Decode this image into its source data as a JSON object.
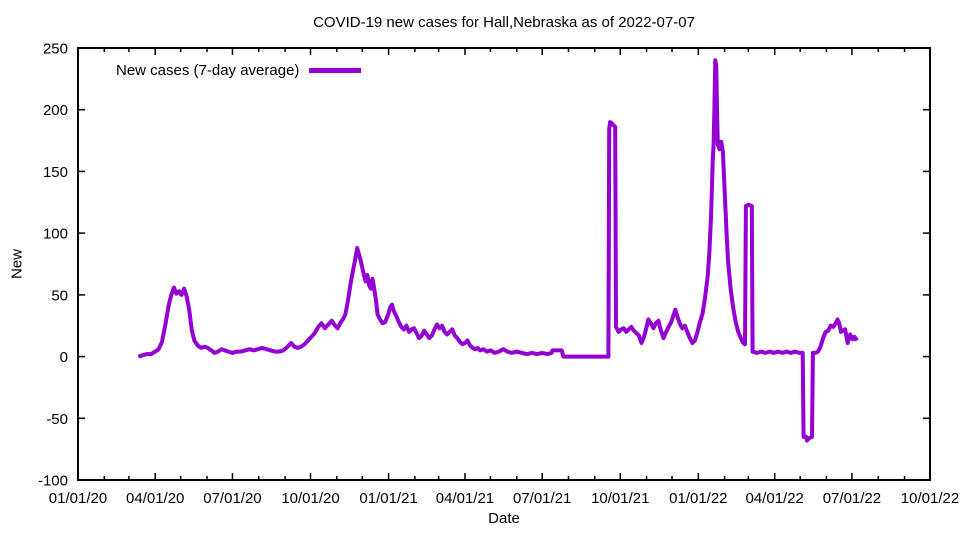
{
  "title": "COVID-19 new cases for Hall,Nebraska as of 2022-07-07",
  "chart_data": {
    "type": "line",
    "title": "COVID-19 new cases for Hall,Nebraska as of 2022-07-07",
    "xlabel": "Date",
    "ylabel": "New",
    "grid": false,
    "legend_position": "inside-top-left",
    "x_range": [
      "2020-01-01",
      "2022-10-01"
    ],
    "ylim": [
      -100,
      250
    ],
    "y_ticks": [
      {
        "value": -100,
        "label": "-100"
      },
      {
        "value": -50,
        "label": "-50"
      },
      {
        "value": 0,
        "label": "0"
      },
      {
        "value": 50,
        "label": "50"
      },
      {
        "value": 100,
        "label": "100"
      },
      {
        "value": 150,
        "label": "150"
      },
      {
        "value": 200,
        "label": "200"
      },
      {
        "value": 250,
        "label": "250"
      }
    ],
    "x_ticks": [
      {
        "date": "2020-01-01",
        "label": "01/01/20"
      },
      {
        "date": "2020-04-01",
        "label": "04/01/20"
      },
      {
        "date": "2020-07-01",
        "label": "07/01/20"
      },
      {
        "date": "2020-10-01",
        "label": "10/01/20"
      },
      {
        "date": "2021-01-01",
        "label": "01/01/21"
      },
      {
        "date": "2021-04-01",
        "label": "04/01/21"
      },
      {
        "date": "2021-07-01",
        "label": "07/01/21"
      },
      {
        "date": "2021-10-01",
        "label": "10/01/21"
      },
      {
        "date": "2022-01-01",
        "label": "01/01/22"
      },
      {
        "date": "2022-04-01",
        "label": "04/01/22"
      },
      {
        "date": "2022-07-01",
        "label": "07/01/22"
      },
      {
        "date": "2022-10-01",
        "label": "10/01/22"
      }
    ],
    "x_minor_ticks": "monthly",
    "series": [
      {
        "name": "New cases (7-day average)",
        "color": "#9400d3",
        "points": [
          [
            "2020-03-12",
            0
          ],
          [
            "2020-03-17",
            1
          ],
          [
            "2020-03-22",
            2
          ],
          [
            "2020-03-27",
            2
          ],
          [
            "2020-04-01",
            4
          ],
          [
            "2020-04-05",
            6
          ],
          [
            "2020-04-09",
            12
          ],
          [
            "2020-04-13",
            26
          ],
          [
            "2020-04-17",
            42
          ],
          [
            "2020-04-20",
            50
          ],
          [
            "2020-04-23",
            56
          ],
          [
            "2020-04-26",
            51
          ],
          [
            "2020-04-29",
            53
          ],
          [
            "2020-05-02",
            50
          ],
          [
            "2020-05-05",
            55
          ],
          [
            "2020-05-08",
            49
          ],
          [
            "2020-05-11",
            38
          ],
          [
            "2020-05-14",
            22
          ],
          [
            "2020-05-17",
            13
          ],
          [
            "2020-05-21",
            9
          ],
          [
            "2020-05-25",
            7
          ],
          [
            "2020-05-29",
            8
          ],
          [
            "2020-06-02",
            7
          ],
          [
            "2020-06-06",
            5
          ],
          [
            "2020-06-10",
            3
          ],
          [
            "2020-06-14",
            4
          ],
          [
            "2020-06-18",
            6
          ],
          [
            "2020-06-22",
            5
          ],
          [
            "2020-06-26",
            4
          ],
          [
            "2020-07-01",
            3
          ],
          [
            "2020-07-06",
            4
          ],
          [
            "2020-07-11",
            4
          ],
          [
            "2020-07-16",
            5
          ],
          [
            "2020-07-21",
            6
          ],
          [
            "2020-07-26",
            5
          ],
          [
            "2020-07-31",
            6
          ],
          [
            "2020-08-05",
            7
          ],
          [
            "2020-08-10",
            6
          ],
          [
            "2020-08-15",
            5
          ],
          [
            "2020-08-20",
            4
          ],
          [
            "2020-08-25",
            4
          ],
          [
            "2020-08-30",
            5
          ],
          [
            "2020-09-04",
            8
          ],
          [
            "2020-09-08",
            11
          ],
          [
            "2020-09-12",
            8
          ],
          [
            "2020-09-16",
            7
          ],
          [
            "2020-09-20",
            8
          ],
          [
            "2020-09-24",
            10
          ],
          [
            "2020-09-28",
            13
          ],
          [
            "2020-10-02",
            16
          ],
          [
            "2020-10-06",
            19
          ],
          [
            "2020-10-10",
            24
          ],
          [
            "2020-10-14",
            27
          ],
          [
            "2020-10-18",
            23
          ],
          [
            "2020-10-22",
            26
          ],
          [
            "2020-10-26",
            29
          ],
          [
            "2020-10-30",
            25
          ],
          [
            "2020-11-02",
            23
          ],
          [
            "2020-11-05",
            27
          ],
          [
            "2020-11-08",
            30
          ],
          [
            "2020-11-11",
            34
          ],
          [
            "2020-11-14",
            45
          ],
          [
            "2020-11-17",
            58
          ],
          [
            "2020-11-19",
            66
          ],
          [
            "2020-11-21",
            73
          ],
          [
            "2020-11-23",
            80
          ],
          [
            "2020-11-25",
            88
          ],
          [
            "2020-11-27",
            83
          ],
          [
            "2020-11-29",
            78
          ],
          [
            "2020-12-01",
            72
          ],
          [
            "2020-12-03",
            66
          ],
          [
            "2020-12-05",
            61
          ],
          [
            "2020-12-07",
            66
          ],
          [
            "2020-12-09",
            58
          ],
          [
            "2020-12-11",
            55
          ],
          [
            "2020-12-13",
            63
          ],
          [
            "2020-12-15",
            55
          ],
          [
            "2020-12-17",
            46
          ],
          [
            "2020-12-19",
            34
          ],
          [
            "2020-12-22",
            30
          ],
          [
            "2020-12-25",
            27
          ],
          [
            "2020-12-28",
            28
          ],
          [
            "2020-12-31",
            33
          ],
          [
            "2021-01-03",
            40
          ],
          [
            "2021-01-05",
            42
          ],
          [
            "2021-01-07",
            37
          ],
          [
            "2021-01-10",
            33
          ],
          [
            "2021-01-13",
            28
          ],
          [
            "2021-01-16",
            24
          ],
          [
            "2021-01-19",
            22
          ],
          [
            "2021-01-22",
            25
          ],
          [
            "2021-01-25",
            20
          ],
          [
            "2021-01-28",
            22
          ],
          [
            "2021-01-31",
            23
          ],
          [
            "2021-02-03",
            19
          ],
          [
            "2021-02-06",
            15
          ],
          [
            "2021-02-09",
            17
          ],
          [
            "2021-02-12",
            21
          ],
          [
            "2021-02-15",
            18
          ],
          [
            "2021-02-18",
            15
          ],
          [
            "2021-02-21",
            17
          ],
          [
            "2021-02-24",
            22
          ],
          [
            "2021-02-27",
            26
          ],
          [
            "2021-03-02",
            23
          ],
          [
            "2021-03-05",
            25
          ],
          [
            "2021-03-08",
            20
          ],
          [
            "2021-03-11",
            18
          ],
          [
            "2021-03-14",
            20
          ],
          [
            "2021-03-17",
            22
          ],
          [
            "2021-03-20",
            17
          ],
          [
            "2021-03-23",
            15
          ],
          [
            "2021-03-26",
            12
          ],
          [
            "2021-03-29",
            10
          ],
          [
            "2021-04-01",
            11
          ],
          [
            "2021-04-04",
            13
          ],
          [
            "2021-04-07",
            9
          ],
          [
            "2021-04-10",
            7
          ],
          [
            "2021-04-13",
            6
          ],
          [
            "2021-04-16",
            7
          ],
          [
            "2021-04-19",
            5
          ],
          [
            "2021-04-23",
            6
          ],
          [
            "2021-04-27",
            4
          ],
          [
            "2021-05-01",
            5
          ],
          [
            "2021-05-06",
            3
          ],
          [
            "2021-05-11",
            4
          ],
          [
            "2021-05-16",
            6
          ],
          [
            "2021-05-21",
            4
          ],
          [
            "2021-05-26",
            3
          ],
          [
            "2021-06-01",
            4
          ],
          [
            "2021-06-07",
            3
          ],
          [
            "2021-06-13",
            2
          ],
          [
            "2021-06-19",
            3
          ],
          [
            "2021-06-25",
            2
          ],
          [
            "2021-07-01",
            3
          ],
          [
            "2021-07-07",
            2
          ],
          [
            "2021-07-12",
            3
          ],
          [
            "2021-07-13",
            5
          ],
          [
            "2021-07-24",
            5
          ],
          [
            "2021-07-26",
            0
          ],
          [
            "2021-09-17",
            0
          ],
          [
            "2021-09-18",
            184
          ],
          [
            "2021-09-19",
            190
          ],
          [
            "2021-09-21",
            189
          ],
          [
            "2021-09-25",
            186
          ],
          [
            "2021-09-26",
            24
          ],
          [
            "2021-09-29",
            20
          ],
          [
            "2021-10-02",
            22
          ],
          [
            "2021-10-05",
            23
          ],
          [
            "2021-10-08",
            20
          ],
          [
            "2021-10-11",
            22
          ],
          [
            "2021-10-14",
            24
          ],
          [
            "2021-10-17",
            21
          ],
          [
            "2021-10-20",
            19
          ],
          [
            "2021-10-23",
            17
          ],
          [
            "2021-10-26",
            11
          ],
          [
            "2021-10-29",
            16
          ],
          [
            "2021-11-01",
            24
          ],
          [
            "2021-11-03",
            30
          ],
          [
            "2021-11-06",
            27
          ],
          [
            "2021-11-09",
            23
          ],
          [
            "2021-11-12",
            27
          ],
          [
            "2021-11-15",
            29
          ],
          [
            "2021-11-18",
            21
          ],
          [
            "2021-11-21",
            15
          ],
          [
            "2021-11-24",
            20
          ],
          [
            "2021-11-27",
            24
          ],
          [
            "2021-11-30",
            28
          ],
          [
            "2021-12-03",
            34
          ],
          [
            "2021-12-05",
            38
          ],
          [
            "2021-12-07",
            33
          ],
          [
            "2021-12-10",
            27
          ],
          [
            "2021-12-13",
            23
          ],
          [
            "2021-12-16",
            25
          ],
          [
            "2021-12-19",
            20
          ],
          [
            "2021-12-22",
            15
          ],
          [
            "2021-12-25",
            11
          ],
          [
            "2021-12-28",
            13
          ],
          [
            "2021-12-31",
            20
          ],
          [
            "2022-01-03",
            28
          ],
          [
            "2022-01-06",
            35
          ],
          [
            "2022-01-09",
            48
          ],
          [
            "2022-01-12",
            65
          ],
          [
            "2022-01-14",
            85
          ],
          [
            "2022-01-16",
            115
          ],
          [
            "2022-01-18",
            160
          ],
          [
            "2022-01-19",
            172
          ],
          [
            "2022-01-20",
            205
          ],
          [
            "2022-01-21",
            240
          ],
          [
            "2022-01-22",
            236
          ],
          [
            "2022-01-23",
            200
          ],
          [
            "2022-01-24",
            172
          ],
          [
            "2022-01-26",
            168
          ],
          [
            "2022-01-28",
            174
          ],
          [
            "2022-01-30",
            166
          ],
          [
            "2022-02-01",
            135
          ],
          [
            "2022-02-03",
            105
          ],
          [
            "2022-02-05",
            78
          ],
          [
            "2022-02-08",
            55
          ],
          [
            "2022-02-11",
            40
          ],
          [
            "2022-02-14",
            28
          ],
          [
            "2022-02-17",
            20
          ],
          [
            "2022-02-20",
            15
          ],
          [
            "2022-02-23",
            11
          ],
          [
            "2022-02-25",
            10
          ],
          [
            "2022-02-26",
            122
          ],
          [
            "2022-03-01",
            123
          ],
          [
            "2022-03-05",
            122
          ],
          [
            "2022-03-06",
            4
          ],
          [
            "2022-03-11",
            3
          ],
          [
            "2022-03-16",
            4
          ],
          [
            "2022-03-21",
            3
          ],
          [
            "2022-03-26",
            4
          ],
          [
            "2022-03-31",
            3
          ],
          [
            "2022-04-05",
            4
          ],
          [
            "2022-04-10",
            3
          ],
          [
            "2022-04-15",
            4
          ],
          [
            "2022-04-20",
            3
          ],
          [
            "2022-04-25",
            4
          ],
          [
            "2022-04-30",
            3
          ],
          [
            "2022-05-04",
            3
          ],
          [
            "2022-05-05",
            -65
          ],
          [
            "2022-05-08",
            -65
          ],
          [
            "2022-05-09",
            -68
          ],
          [
            "2022-05-12",
            -66
          ],
          [
            "2022-05-15",
            -65
          ],
          [
            "2022-05-16",
            3
          ],
          [
            "2022-05-19",
            3
          ],
          [
            "2022-05-22",
            4
          ],
          [
            "2022-05-25",
            8
          ],
          [
            "2022-05-28",
            15
          ],
          [
            "2022-05-31",
            20
          ],
          [
            "2022-06-03",
            21
          ],
          [
            "2022-06-06",
            25
          ],
          [
            "2022-06-09",
            24
          ],
          [
            "2022-06-12",
            27
          ],
          [
            "2022-06-14",
            30
          ],
          [
            "2022-06-16",
            27
          ],
          [
            "2022-06-18",
            20
          ],
          [
            "2022-06-20",
            21
          ],
          [
            "2022-06-23",
            22
          ],
          [
            "2022-06-26",
            11
          ],
          [
            "2022-06-29",
            18
          ],
          [
            "2022-07-02",
            14
          ],
          [
            "2022-07-04",
            16
          ],
          [
            "2022-07-07",
            13
          ]
        ]
      }
    ]
  }
}
